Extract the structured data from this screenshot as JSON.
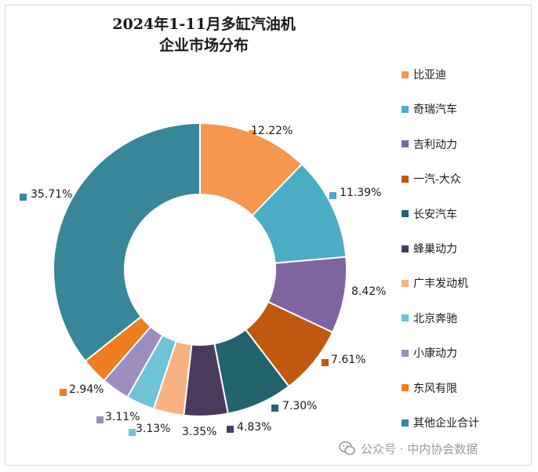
{
  "chart_data": {
    "type": "pie",
    "style": "donut",
    "title_lines": [
      "2024年1-11月多缸汽油机",
      "企业市场分布"
    ],
    "legend_position": "right",
    "series": [
      {
        "name": "比亚迪",
        "value": 12.22,
        "label": "12.22%",
        "color": "#F5974E"
      },
      {
        "name": "奇瑞汽车",
        "value": 11.39,
        "label": "11.39%",
        "color": "#4BACC6"
      },
      {
        "name": "吉利动力",
        "value": 8.42,
        "label": "8.42%",
        "color": "#8064A2"
      },
      {
        "name": "一汽-大众",
        "value": 7.61,
        "label": "7.61%",
        "color": "#C0590F"
      },
      {
        "name": "长安汽车",
        "value": 7.3,
        "label": "7.30%",
        "color": "#22636F"
      },
      {
        "name": "蜂巢动力",
        "value": 4.83,
        "label": "4.83%",
        "color": "#4A3A5E"
      },
      {
        "name": "广丰发动机",
        "value": 3.35,
        "label": "3.35%",
        "color": "#F9B27F"
      },
      {
        "name": "北京奔驰",
        "value": 3.13,
        "label": "3.13%",
        "color": "#6FC3D6"
      },
      {
        "name": "小康动力",
        "value": 3.11,
        "label": "3.11%",
        "color": "#9D8DBF"
      },
      {
        "name": "东风有限",
        "value": 2.94,
        "label": "2.94%",
        "color": "#EE7D1F"
      },
      {
        "name": "其他企业合计",
        "value": 35.71,
        "label": "35.71%",
        "color": "#36879A"
      }
    ]
  },
  "watermark": {
    "text": "公众号 · 中内协会数据",
    "icon": "wechat-icon"
  }
}
